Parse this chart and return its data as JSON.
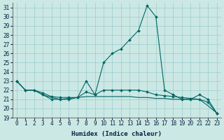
{
  "xlabel": "Humidex (Indice chaleur)",
  "ylabel": "",
  "bg_color": "#cce8e4",
  "grid_color": "#99cccc",
  "line_color": "#006666",
  "xlim": [
    -0.5,
    23.5
  ],
  "ylim": [
    19,
    31.5
  ],
  "yticks": [
    19,
    20,
    21,
    22,
    23,
    24,
    25,
    26,
    27,
    28,
    29,
    30,
    31
  ],
  "xticks": [
    0,
    1,
    2,
    3,
    4,
    5,
    6,
    7,
    8,
    9,
    10,
    11,
    12,
    13,
    14,
    15,
    16,
    17,
    18,
    19,
    20,
    21,
    22,
    23
  ],
  "series1_x": [
    0,
    1,
    2,
    3,
    4,
    5,
    6,
    7,
    8,
    9,
    10,
    11,
    12,
    13,
    14,
    15,
    16,
    17,
    18,
    19,
    20,
    21,
    22,
    23
  ],
  "series1_y": [
    23.0,
    22.0,
    22.0,
    21.7,
    21.3,
    21.2,
    21.2,
    21.2,
    21.8,
    21.5,
    22.0,
    22.0,
    22.0,
    22.0,
    22.0,
    21.8,
    21.5,
    21.4,
    21.3,
    21.2,
    21.1,
    21.0,
    20.7,
    19.5
  ],
  "series2_x": [
    0,
    1,
    2,
    3,
    4,
    5,
    6,
    7,
    8,
    9,
    10,
    11,
    12,
    13,
    14,
    15,
    16,
    17,
    18,
    19,
    20,
    21,
    22,
    23
  ],
  "series2_y": [
    23.0,
    22.0,
    22.0,
    21.5,
    21.0,
    21.0,
    21.0,
    21.2,
    23.0,
    21.5,
    25.0,
    26.0,
    26.5,
    27.5,
    28.5,
    31.2,
    30.0,
    22.0,
    21.5,
    21.0,
    21.0,
    21.5,
    21.0,
    19.5
  ],
  "series3_x": [
    0,
    1,
    2,
    3,
    4,
    5,
    6,
    7,
    8,
    9,
    10,
    11,
    12,
    13,
    14,
    15,
    16,
    17,
    18,
    19,
    20,
    21,
    22,
    23
  ],
  "series3_y": [
    23.0,
    22.0,
    22.0,
    21.5,
    21.2,
    21.0,
    21.1,
    21.2,
    21.3,
    21.3,
    21.3,
    21.3,
    21.3,
    21.3,
    21.2,
    21.2,
    21.1,
    21.1,
    21.0,
    21.0,
    21.0,
    21.0,
    20.3,
    19.5
  ]
}
